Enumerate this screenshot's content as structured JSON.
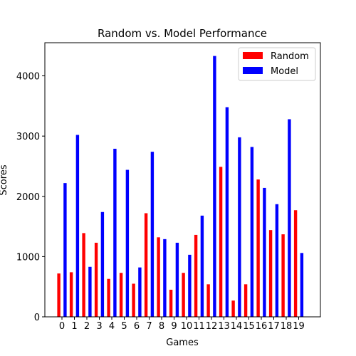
{
  "chart_data": {
    "type": "bar",
    "title": "Random vs. Model Performance",
    "xlabel": "Games",
    "ylabel": "Scores",
    "categories": [
      "0",
      "1",
      "2",
      "3",
      "4",
      "5",
      "6",
      "7",
      "8",
      "9",
      "10",
      "11",
      "12",
      "13",
      "14",
      "15",
      "16",
      "17",
      "18",
      "19"
    ],
    "series": [
      {
        "name": "Random",
        "color": "#ff0000",
        "values": [
          720,
          740,
          1390,
          1230,
          630,
          730,
          550,
          1720,
          1320,
          450,
          730,
          1360,
          540,
          2490,
          270,
          540,
          2280,
          1440,
          1370,
          1770
        ]
      },
      {
        "name": "Model",
        "color": "#0000ff",
        "values": [
          2220,
          3020,
          830,
          1740,
          2790,
          2440,
          820,
          2740,
          1290,
          1230,
          1030,
          1680,
          4330,
          3480,
          2980,
          2820,
          2140,
          1870,
          3280,
          1060
        ]
      }
    ],
    "ylim": [
      0,
      4550
    ],
    "yticks": [
      0,
      1000,
      2000,
      3000,
      4000
    ],
    "legend": "top-right",
    "grid": false
  }
}
